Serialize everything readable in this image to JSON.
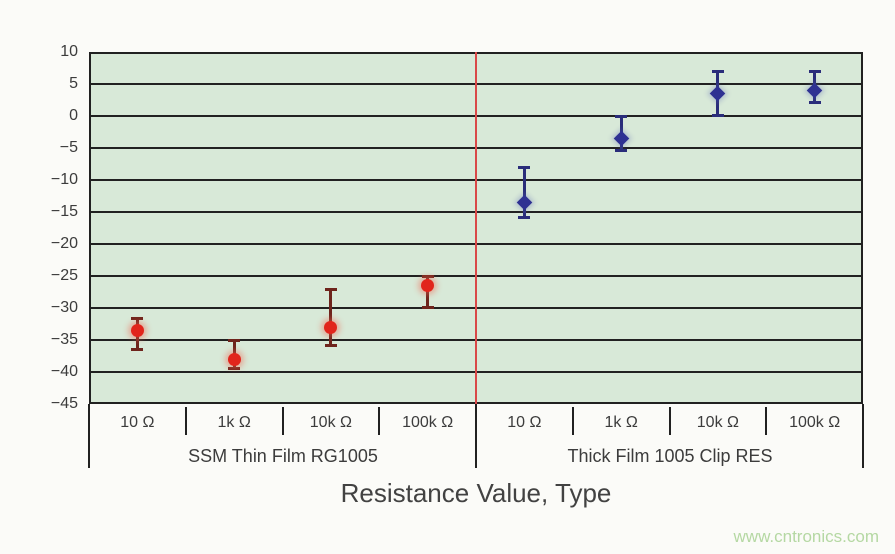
{
  "watermark": "www.cntronics.com",
  "chart_data": {
    "type": "scatter",
    "title": "",
    "xlabel": "Resistance Value, Type",
    "ylabel": "",
    "ylim": [
      -45,
      10
    ],
    "yticks": [
      10,
      5,
      0,
      -5,
      -10,
      -15,
      -20,
      -25,
      -30,
      -35,
      -40,
      -45
    ],
    "grid": "horizontal",
    "legend": "none",
    "plot_bg_color": "#d8e9d8",
    "grid_color": "#212121",
    "divider_color": "#d94848",
    "groups": [
      {
        "label": "SSM Thin Film RG1005",
        "marker": "circle",
        "marker_color": "#e1251c",
        "error_color": "#6e241c",
        "categories": [
          "10 Ω",
          "1k Ω",
          "10k Ω",
          "100k Ω"
        ],
        "points": [
          {
            "x": "10 Ω",
            "y": -33.5,
            "err_hi": -31.5,
            "err_lo": -36.5
          },
          {
            "x": "1k Ω",
            "y": -38,
            "err_hi": -35,
            "err_lo": -39.5
          },
          {
            "x": "10k Ω",
            "y": -33,
            "err_hi": -27,
            "err_lo": -36
          },
          {
            "x": "100k Ω",
            "y": -26.5,
            "err_hi": -25,
            "err_lo": -30
          }
        ]
      },
      {
        "label": "Thick Film 1005 Clip RES",
        "marker": "diamond",
        "marker_color": "#2e3192",
        "error_color": "#2a2d7a",
        "categories": [
          "10 Ω",
          "1k Ω",
          "10k Ω",
          "100k Ω"
        ],
        "points": [
          {
            "x": "10 Ω",
            "y": -13.5,
            "err_hi": -8,
            "err_lo": -16
          },
          {
            "x": "1k Ω",
            "y": -3.5,
            "err_hi": 0,
            "err_lo": -5.5
          },
          {
            "x": "10k Ω",
            "y": 3.5,
            "err_hi": 7,
            "err_lo": 0
          },
          {
            "x": "100k Ω",
            "y": 4,
            "err_hi": 7,
            "err_lo": 2
          }
        ]
      }
    ]
  }
}
